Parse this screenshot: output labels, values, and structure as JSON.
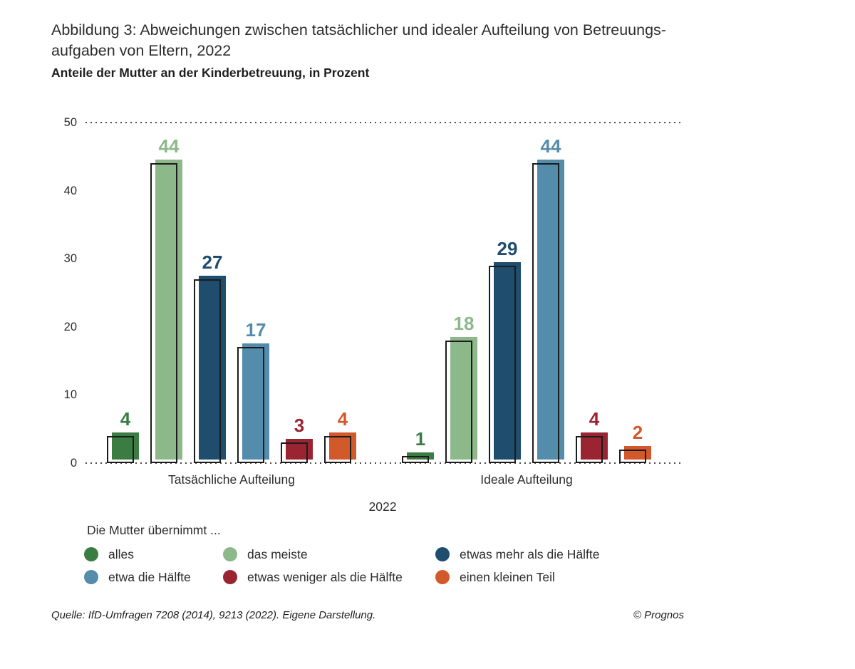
{
  "figure": {
    "title_line1": "Abbildung 3: Abweichungen zwischen tatsächlicher und idealer Aufteilung von Betreuungs-",
    "title_line2": "aufgaben von Eltern, 2022",
    "subtitle": "Anteile der Mutter an der Kinderbetreuung, in Prozent",
    "source": "Quelle: IfD-Umfragen 7208 (2014), 9213 (2022). Eigene Darstellung.",
    "copyright": "© Prognos"
  },
  "chart_data": {
    "type": "bar",
    "title": "Abbildung 3: Abweichungen zwischen tatsächlicher und idealer Aufteilung von Betreuungsaufgaben von Eltern, 2022",
    "subtitle": "Anteile der Mutter an der Kinderbetreuung, in Prozent",
    "ylabel": "Prozent",
    "ylim": [
      0,
      50
    ],
    "yticks": [
      0,
      10,
      20,
      30,
      40,
      50
    ],
    "grid": "dotted line at 50 and dotted baseline at 0",
    "legend_position": "bottom",
    "legend_title": "Die Mutter übernimmt ...",
    "categories": [
      "Tatsächliche Aufteilung",
      "Ideale Aufteilung"
    ],
    "x_axis_label": "2022",
    "bar_style": "colored fill offset up-right over black outline rectangle",
    "outline_color": "#1c1c1c",
    "text_color": "#2d2d2d",
    "series": [
      {
        "name": "alles",
        "color": "#3a7c41",
        "values": [
          4,
          1
        ]
      },
      {
        "name": "das meiste",
        "color": "#8cb88a",
        "values": [
          44,
          18
        ]
      },
      {
        "name": "etwas mehr als die Hälfte",
        "color": "#1e4d6e",
        "values": [
          27,
          29
        ]
      },
      {
        "name": "etwa die Hälfte",
        "color": "#548cab",
        "values": [
          17,
          44
        ]
      },
      {
        "name": "etwas weniger als die Hälfte",
        "color": "#9b2433",
        "values": [
          3,
          4
        ]
      },
      {
        "name": "einen kleinen Teil",
        "color": "#d2592a",
        "values": [
          4,
          2
        ]
      }
    ]
  }
}
